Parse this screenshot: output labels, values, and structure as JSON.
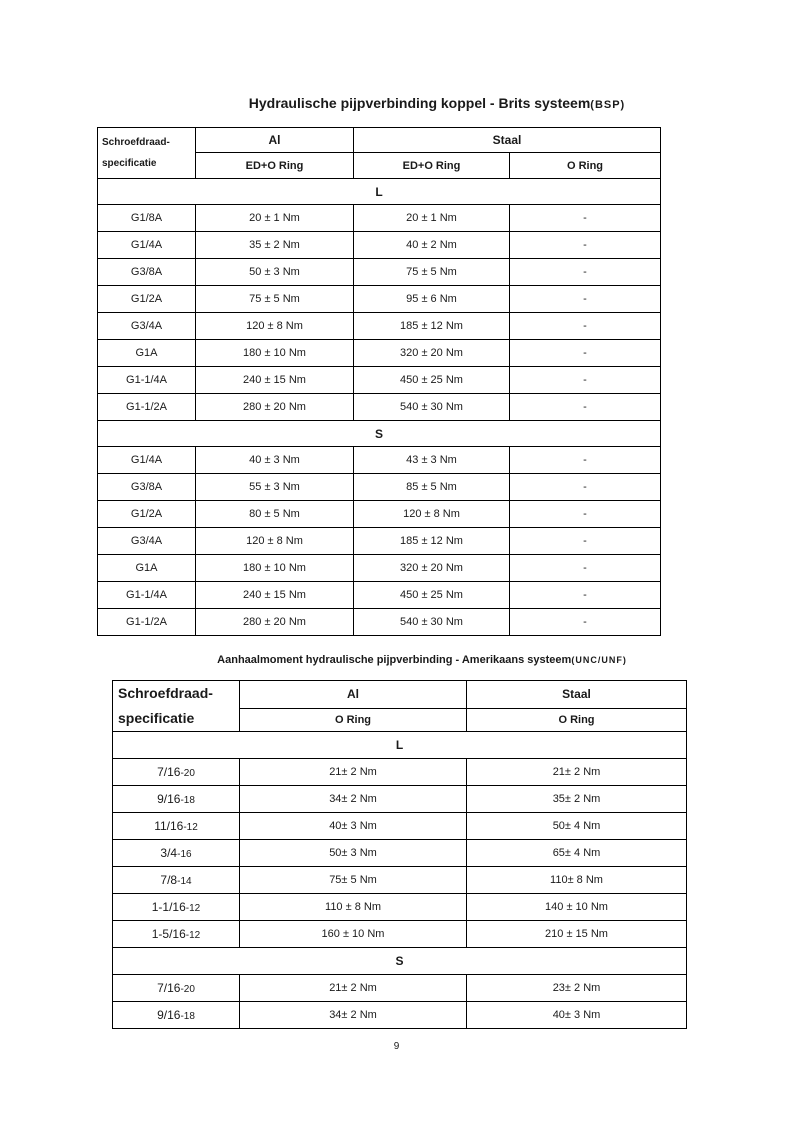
{
  "page_number": "9",
  "table1": {
    "title": "Hydraulische pijpverbinding koppel - Brits systeem",
    "title_paren": "(BSP)",
    "header": {
      "spec_line1": "Schroefdraad-",
      "spec_line2": "specificatie",
      "al": "Al",
      "staal": "Staal",
      "al_sub": "ED+O Ring",
      "staal_sub1": "ED+O Ring",
      "staal_sub2": "O Ring"
    },
    "sections": [
      {
        "name": "L",
        "rows": [
          {
            "label": "G1/8A",
            "values": [
              "20 ± 1 Nm",
              "20 ± 1 Nm",
              "-"
            ]
          },
          {
            "label": "G1/4A",
            "values": [
              "35 ± 2 Nm",
              "40 ± 2 Nm",
              "-"
            ]
          },
          {
            "label": "G3/8A",
            "values": [
              "50 ± 3 Nm",
              "75 ± 5 Nm",
              "-"
            ]
          },
          {
            "label": "G1/2A",
            "values": [
              "75 ± 5 Nm",
              "95 ± 6 Nm",
              "-"
            ]
          },
          {
            "label": "G3/4A",
            "values": [
              "120 ± 8 Nm",
              "185 ± 12 Nm",
              "-"
            ]
          },
          {
            "label": "G1A",
            "values": [
              "180 ± 10 Nm",
              "320 ± 20 Nm",
              "-"
            ]
          },
          {
            "label": "G1-1/4A",
            "values": [
              "240 ± 15 Nm",
              "450 ± 25 Nm",
              "-"
            ]
          },
          {
            "label": "G1-1/2A",
            "values": [
              "280 ± 20 Nm",
              "540 ± 30 Nm",
              "-"
            ]
          }
        ]
      },
      {
        "name": "S",
        "rows": [
          {
            "label": "G1/4A",
            "values": [
              "40 ± 3 Nm",
              "43 ± 3 Nm",
              "-"
            ]
          },
          {
            "label": "G3/8A",
            "values": [
              "55 ± 3 Nm",
              "85 ± 5 Nm",
              "-"
            ]
          },
          {
            "label": "G1/2A",
            "values": [
              "80 ± 5 Nm",
              "120 ± 8 Nm",
              "-"
            ]
          },
          {
            "label": "G3/4A",
            "values": [
              "120 ± 8 Nm",
              "185 ± 12 Nm",
              "-"
            ]
          },
          {
            "label": "G1A",
            "values": [
              "180 ± 10 Nm",
              "320 ± 20 Nm",
              "-"
            ]
          },
          {
            "label": "G1-1/4A",
            "values": [
              "240 ± 15 Nm",
              "450 ± 25 Nm",
              "-"
            ]
          },
          {
            "label": "G1-1/2A",
            "values": [
              "280 ± 20 Nm",
              "540 ± 30 Nm",
              "-"
            ]
          }
        ]
      }
    ]
  },
  "table2": {
    "title": "Aanhaalmoment hydraulische pijpverbinding - Amerikaans systeem",
    "title_paren": "(UNC/UNF)",
    "header": {
      "spec_line1": "Schroefdraad-",
      "spec_line2": "specificatie",
      "al": "Al",
      "staal": "Staal",
      "al_sub": "O Ring",
      "staal_sub": "O Ring"
    },
    "sections": [
      {
        "name": "L",
        "rows": [
          {
            "label": {
              "main": "7/16",
              "suffix": "-20"
            },
            "values": [
              "21± 2 Nm",
              "21± 2 Nm"
            ]
          },
          {
            "label": {
              "main": "9/16",
              "suffix": "-18"
            },
            "values": [
              "34± 2 Nm",
              "35± 2 Nm"
            ]
          },
          {
            "label": {
              "main": "11/16",
              "suffix": "-12"
            },
            "values": [
              "40± 3 Nm",
              "50± 4 Nm"
            ]
          },
          {
            "label": {
              "main": "3/4",
              "suffix": "-16"
            },
            "values": [
              "50± 3 Nm",
              "65± 4 Nm"
            ]
          },
          {
            "label": {
              "main": "7/8",
              "suffix": "-14"
            },
            "values": [
              "75± 5 Nm",
              "110± 8 Nm"
            ]
          },
          {
            "label": {
              "main": "1-1/16",
              "suffix": "-12"
            },
            "values": [
              "110 ± 8 Nm",
              "140 ± 10 Nm"
            ]
          },
          {
            "label": {
              "main": "1-5/16",
              "suffix": "-12"
            },
            "values": [
              "160 ± 10 Nm",
              "210 ± 15 Nm"
            ]
          }
        ]
      },
      {
        "name": "S",
        "rows": [
          {
            "label": {
              "main": "7/16",
              "suffix": "-20"
            },
            "values": [
              "21± 2 Nm",
              "23± 2 Nm"
            ]
          },
          {
            "label": {
              "main": "9/16",
              "suffix": "-18"
            },
            "values": [
              "34± 2 Nm",
              "40± 3 Nm"
            ]
          }
        ]
      }
    ]
  }
}
